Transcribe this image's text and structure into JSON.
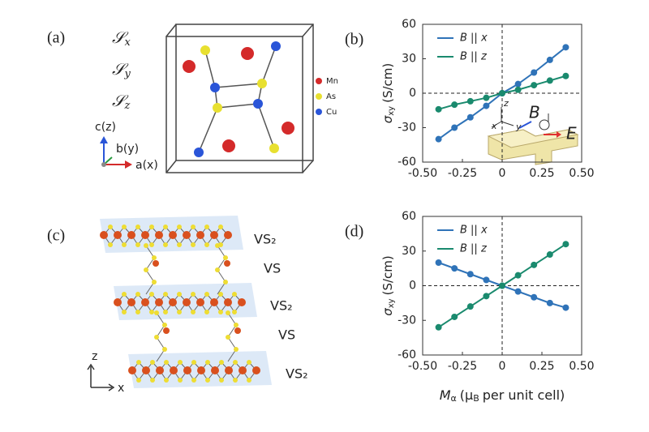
{
  "structure_a": {
    "label": "(a)",
    "operations": [
      [
        "𝒮",
        "x"
      ],
      [
        "𝒮",
        "y"
      ],
      [
        "𝒮",
        "z"
      ]
    ],
    "legend": [
      "Mn",
      "As",
      "Cu"
    ],
    "axes": [
      "c(z)",
      "b(y)",
      "a(x)"
    ]
  },
  "structure_c": {
    "label": "(c)",
    "layers": [
      "VS₂",
      "VS",
      "VS₂",
      "VS",
      "VS₂"
    ],
    "axes": [
      "z",
      "x"
    ]
  },
  "chart_data": [
    {
      "type": "line",
      "panel_label": "(b)",
      "ylabel": [
        "σ",
        "xy",
        "(S/cm)"
      ],
      "x": [
        -0.4,
        -0.3,
        -0.2,
        -0.1,
        0,
        0.1,
        0.2,
        0.3,
        0.4
      ],
      "series": [
        {
          "name": "B || x",
          "color": "#2f73b8",
          "values": [
            -40,
            -30,
            -21,
            -11,
            0,
            8,
            18,
            29,
            40
          ]
        },
        {
          "name": "B || z",
          "color": "#1a8a6e",
          "values": [
            -14,
            -10,
            -7,
            -4,
            0,
            3,
            7,
            11,
            15
          ]
        }
      ],
      "xlim": [
        -0.5,
        0.5
      ],
      "xticks": [
        {
          "value": -0.5,
          "label": "-0.50"
        },
        -0.25,
        0,
        0.25,
        {
          "value": 0.5,
          "label": "0.50"
        }
      ],
      "ylim": [
        -60,
        60
      ],
      "yticks": [
        -60,
        -30,
        0,
        30,
        60
      ],
      "zero_lines": true,
      "legend": "upper left",
      "annotations": [
        "z",
        "x",
        "y",
        "B",
        "E"
      ]
    },
    {
      "type": "line",
      "panel_label": "(d)",
      "ylabel": [
        "σ",
        "xy",
        "(S/cm)"
      ],
      "xlabel": [
        "M",
        "α",
        "(μ",
        "B",
        "per unit cell)"
      ],
      "x": [
        -0.4,
        -0.3,
        -0.2,
        -0.1,
        0,
        0.1,
        0.2,
        0.3,
        0.4
      ],
      "series": [
        {
          "name": "B || x",
          "color": "#2f73b8",
          "values": [
            20,
            15,
            10,
            5,
            0,
            -5,
            -10,
            -15,
            -19
          ]
        },
        {
          "name": "B || z",
          "color": "#1a8a6e",
          "values": [
            -36,
            -27,
            -18,
            -9,
            0,
            9,
            18,
            27,
            36
          ]
        }
      ],
      "xlim": [
        -0.5,
        0.5
      ],
      "xticks": [
        {
          "value": -0.5,
          "label": "-0.50"
        },
        -0.25,
        0,
        0.25,
        {
          "value": 0.5,
          "label": "0.50"
        }
      ],
      "ylim": [
        -60,
        60
      ],
      "yticks": [
        -60,
        -30,
        0,
        30,
        60
      ],
      "zero_lines": true,
      "legend": "upper left"
    }
  ]
}
